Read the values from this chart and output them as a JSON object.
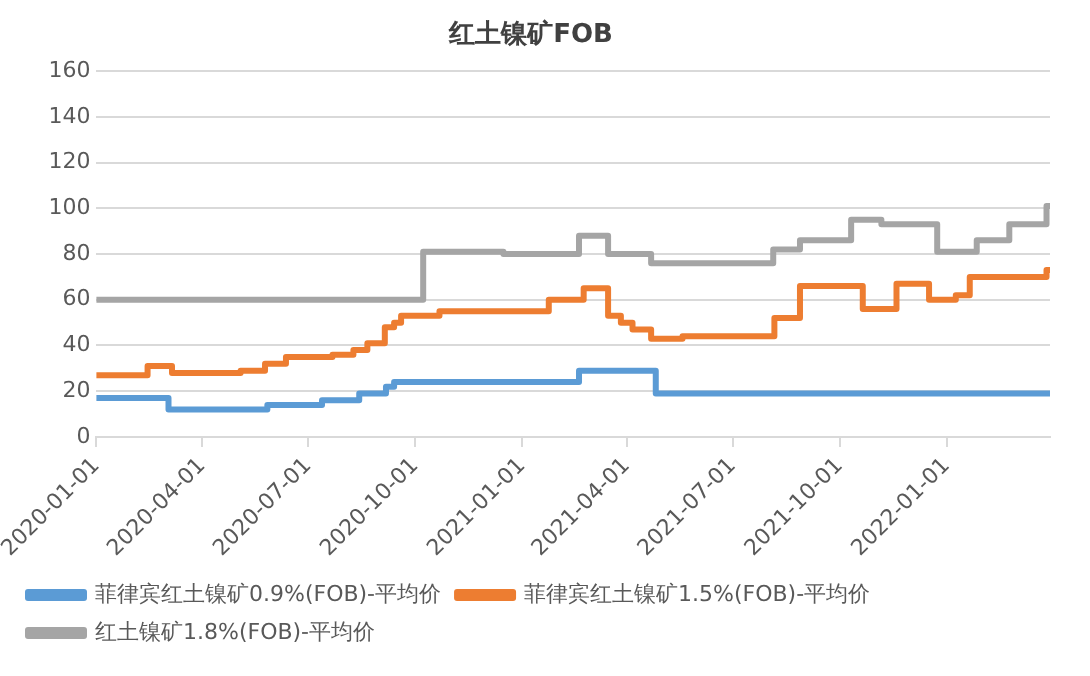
{
  "chart_data": {
    "type": "step",
    "title": "红土镍矿FOB",
    "xlim": [
      "2020-01-01",
      "2022-03-31"
    ],
    "xticks": [
      "2020-01-01",
      "2020-04-01",
      "2020-07-01",
      "2020-10-01",
      "2021-01-01",
      "2021-04-01",
      "2021-07-01",
      "2021-10-01",
      "2022-01-01"
    ],
    "ylim": [
      0,
      160
    ],
    "yticks": [
      0,
      20,
      40,
      60,
      80,
      100,
      120,
      140,
      160
    ],
    "grid": "y",
    "legend": "bottom",
    "line_style": "solid",
    "marker": "none",
    "series": [
      {
        "name": "菲律宾红土镍矿0.9%(FOB)-平均价",
        "color": "#5b9bd5",
        "x": [
          "2020-01-01",
          "2020-03-03",
          "2020-05-27",
          "2020-07-13",
          "2020-08-14",
          "2020-09-06",
          "2020-09-13",
          "2021-02-19",
          "2021-04-26",
          "2022-03-31"
        ],
        "values": [
          17,
          12,
          14,
          16,
          19,
          22,
          24,
          29,
          19,
          19
        ]
      },
      {
        "name": "菲律宾红土镍矿1.5%(FOB)-平均价",
        "color": "#ed7d31",
        "x": [
          "2020-01-01",
          "2020-02-14",
          "2020-03-06",
          "2020-05-04",
          "2020-05-25",
          "2020-06-12",
          "2020-07-22",
          "2020-08-09",
          "2020-08-21",
          "2020-09-05",
          "2020-09-13",
          "2020-09-19",
          "2020-10-22",
          "2021-01-24",
          "2021-02-23",
          "2021-03-16",
          "2021-03-27",
          "2021-04-06",
          "2021-04-22",
          "2021-05-19",
          "2021-08-06",
          "2021-08-28",
          "2021-10-21",
          "2021-11-19",
          "2021-12-17",
          "2022-01-09",
          "2022-01-21",
          "2022-03-28",
          "2022-03-31"
        ],
        "values": [
          27,
          31,
          28,
          29,
          32,
          35,
          36,
          38,
          41,
          48,
          50,
          53,
          55,
          60,
          65,
          53,
          50,
          47,
          43,
          44,
          52,
          66,
          56,
          67,
          60,
          62,
          70,
          73,
          73
        ]
      },
      {
        "name": "红土镍矿1.8%(FOB)-平均价",
        "color": "#a5a5a5",
        "x": [
          "2020-01-01",
          "2020-10-08",
          "2020-12-16",
          "2021-02-19",
          "2021-03-16",
          "2021-04-22",
          "2021-08-05",
          "2021-08-28",
          "2021-10-11",
          "2021-11-06",
          "2021-12-24",
          "2022-01-27",
          "2022-02-24",
          "2022-03-28",
          "2022-03-31"
        ],
        "values": [
          60,
          81,
          80,
          88,
          80,
          76,
          82,
          86,
          95,
          93,
          81,
          86,
          93,
          101,
          101
        ]
      }
    ]
  }
}
